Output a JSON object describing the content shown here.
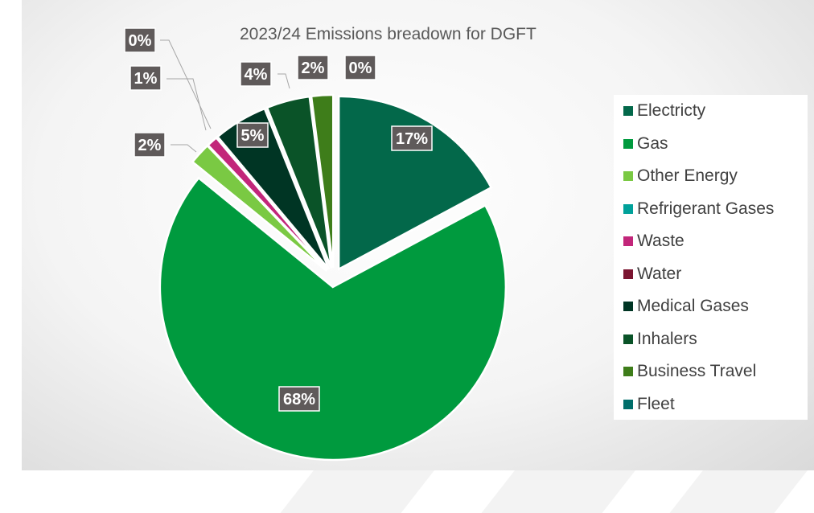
{
  "chart_data": {
    "type": "pie",
    "title": "2023/24 Emissions breadown for DGFT",
    "legend_position": "right",
    "categories": [
      "Electricty",
      "Gas",
      "Other Energy",
      "Refrigerant Gases",
      "Waste",
      "Water",
      "Medical Gases",
      "Inhalers",
      "Business Travel",
      "Fleet"
    ],
    "values": [
      17,
      68,
      2,
      0,
      1,
      0,
      5,
      4,
      2,
      0
    ],
    "data_labels": [
      "17%",
      "68%",
      "2%",
      "0%",
      "1%",
      "0%",
      "5%",
      "4%",
      "2%",
      "0%"
    ],
    "colors": [
      "#03684a",
      "#009a3e",
      "#7ac943",
      "#00a19a",
      "#c2267a",
      "#7b1531",
      "#003524",
      "#0a5328",
      "#3e7d1a",
      "#006e6a"
    ],
    "exploded": true
  }
}
